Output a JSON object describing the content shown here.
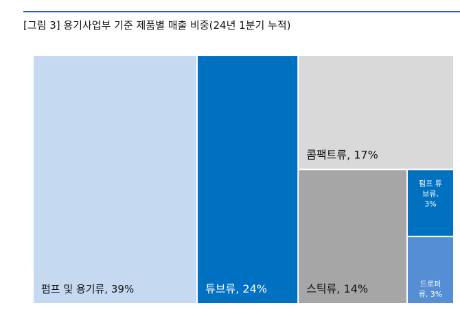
{
  "page": {
    "title": "[그림 3] 용기사업부 기준 제품별 매출 비중(24년 1분기 누적)"
  },
  "chart_data": {
    "type": "treemap",
    "title": "",
    "unit": "%",
    "items": [
      {
        "name": "펌프 및 용기류",
        "value": 39,
        "label": "펌프 및 용기류, 39%",
        "color": "#c5d9f1",
        "text_color": "#111111"
      },
      {
        "name": "튜브류",
        "value": 24,
        "label": "튜브류, 24%",
        "color": "#0070c0",
        "text_color": "#ffffff"
      },
      {
        "name": "콤팩트류",
        "value": 17,
        "label": "콤팩트류, 17%",
        "color": "#d9d9d9",
        "text_color": "#111111"
      },
      {
        "name": "스틱류",
        "value": 14,
        "label": "스틱류, 14%",
        "color": "#a6a6a6",
        "text_color": "#111111"
      },
      {
        "name": "펌프 튜브류",
        "value": 3,
        "label_lines": [
          "펌프 튜",
          "브류,",
          "3%"
        ],
        "color": "#0070c0",
        "text_color": "#ffffff"
      },
      {
        "name": "드로퍼류",
        "value": 3,
        "label_lines": [
          "드로퍼",
          "류, 3%"
        ],
        "color": "#558ed5",
        "text_color": "#ffffff"
      }
    ]
  }
}
